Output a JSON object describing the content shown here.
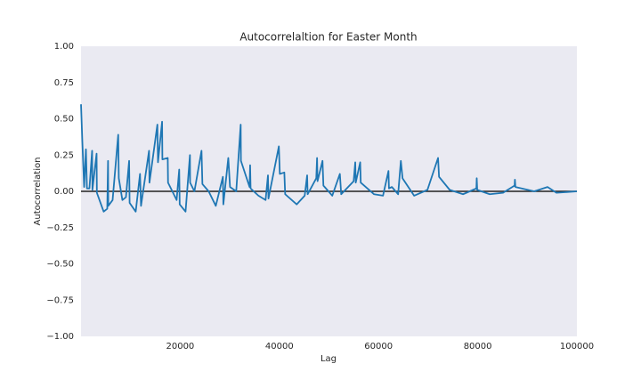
{
  "chart_data": {
    "type": "line",
    "title": "Autocorrelaltion for Easter Month",
    "xlabel": "Lag",
    "ylabel": "Autocorrelation",
    "x": [
      0,
      270,
      630,
      990,
      1200,
      1700,
      2240,
      2300,
      3140,
      3200,
      4040,
      4570,
      5290,
      5450,
      5500,
      6370,
      7500,
      7620,
      8340,
      9060,
      9700,
      9800,
      11030,
      11900,
      12100,
      13720,
      13800,
      15400,
      15520,
      16350,
      16410,
      17490,
      17550,
      19280,
      19800,
      19900,
      21080,
      21970,
      22000,
      22870,
      24300,
      24480,
      25740,
      27180,
      28610,
      28700,
      29700,
      30050,
      31300,
      32200,
      32250,
      33990,
      34100,
      34200,
      35780,
      37220,
      37700,
      37800,
      39900,
      40090,
      41000,
      41170,
      43500,
      45110,
      45600,
      45700,
      47440,
      47600,
      47700,
      48700,
      48880,
      50670,
      52200,
      52470,
      54980,
      55300,
      55400,
      56300,
      56410,
      59100,
      60900,
      62000,
      62100,
      62690,
      63950,
      64500,
      64840,
      67170,
      69860,
      72000,
      72200,
      74350,
      77040,
      79730,
      79800,
      79900,
      82420,
      85110,
      87440,
      87500,
      87600,
      91390,
      94080,
      95870,
      100000
    ],
    "series": [
      {
        "name": "Autocorrelation",
        "color": "#1f77b4",
        "values": [
          0.6,
          0.34,
          0.03,
          0.29,
          0.02,
          0.02,
          0.28,
          0.01,
          0.26,
          -0.01,
          -0.09,
          -0.14,
          -0.12,
          0.21,
          -0.1,
          -0.06,
          0.39,
          0.09,
          -0.06,
          -0.04,
          0.21,
          -0.08,
          -0.14,
          0.12,
          -0.1,
          0.28,
          0.06,
          0.46,
          0.2,
          0.48,
          0.22,
          0.23,
          0.06,
          -0.06,
          0.15,
          -0.09,
          -0.14,
          0.25,
          0.06,
          0,
          0.28,
          0.05,
          0,
          -0.1,
          0.1,
          -0.09,
          0.23,
          0.03,
          0,
          0.46,
          0.21,
          0.03,
          0.18,
          0.02,
          -0.03,
          -0.06,
          0.11,
          -0.05,
          0.31,
          0.12,
          0.13,
          -0.02,
          -0.09,
          -0.03,
          0.11,
          -0.02,
          0.09,
          0.23,
          0.07,
          0.21,
          0.04,
          -0.03,
          0.12,
          -0.02,
          0.07,
          0.2,
          0.06,
          0.2,
          0.06,
          -0.02,
          -0.03,
          0.14,
          0.02,
          0.03,
          -0.02,
          0.21,
          0.09,
          -0.03,
          0.01,
          0.23,
          0.1,
          0.01,
          -0.02,
          0.02,
          0.09,
          0.01,
          -0.02,
          -0.01,
          0.04,
          0.08,
          0.03,
          0,
          0.03,
          -0.01,
          0
        ]
      }
    ],
    "xlim": [
      0,
      100000
    ],
    "xticks": [
      20000,
      40000,
      60000,
      80000,
      100000
    ],
    "ylim": [
      -1,
      1
    ],
    "yticks": [
      {
        "value": 1,
        "label": "1.00"
      },
      0.75,
      {
        "value": 0.5,
        "label": "0.50"
      },
      0.25,
      {
        "value": 0,
        "label": "0.00"
      },
      {
        "value": -0.25,
        "label": "−0.25"
      },
      {
        "value": -0.5,
        "label": "−0.50"
      },
      {
        "value": -0.75,
        "label": "−0.75"
      },
      {
        "value": -1,
        "label": "−1.00"
      }
    ],
    "grid": false
  }
}
